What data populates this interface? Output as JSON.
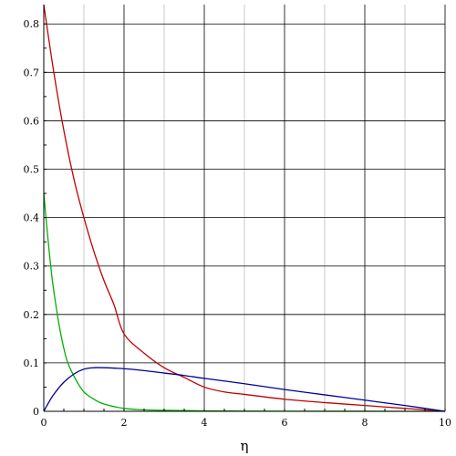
{
  "chart_data": {
    "type": "line",
    "title": "",
    "xlabel": "η",
    "ylabel": "",
    "xlim": [
      0,
      10
    ],
    "ylim": [
      0,
      0.84
    ],
    "grid": true,
    "x_major_ticks": [
      "0",
      "2",
      "4",
      "6",
      "8",
      "10"
    ],
    "y_major_ticks": [
      "0",
      "0.1",
      "0.2",
      "0.3",
      "0.4",
      "0.5",
      "0.6",
      "0.7",
      "0.8"
    ],
    "series": [
      {
        "color": "#c00000",
        "x": [
          0,
          0.25,
          0.5,
          0.75,
          1,
          1.25,
          1.5,
          1.75,
          2,
          2.5,
          3,
          3.5,
          4,
          4.5,
          5,
          6,
          7,
          8,
          9,
          10
        ],
        "y": [
          0.84,
          0.7,
          0.58,
          0.48,
          0.4,
          0.33,
          0.27,
          0.22,
          0.16,
          0.12,
          0.09,
          0.07,
          0.05,
          0.04,
          0.035,
          0.025,
          0.018,
          0.012,
          0.006,
          0
        ]
      },
      {
        "color": "#00b000",
        "x": [
          0,
          0.1,
          0.2,
          0.3,
          0.4,
          0.5,
          0.6,
          0.8,
          1,
          1.25,
          1.5,
          2,
          2.5,
          3,
          4,
          5,
          6,
          8,
          10
        ],
        "y": [
          0.45,
          0.36,
          0.28,
          0.22,
          0.17,
          0.13,
          0.1,
          0.065,
          0.04,
          0.025,
          0.015,
          0.006,
          0.003,
          0.002,
          0.001,
          0.0005,
          0.0003,
          0.0001,
          0
        ]
      },
      {
        "color": "#000099",
        "x": [
          0,
          0.1,
          0.25,
          0.5,
          0.75,
          1,
          1.25,
          1.5,
          2,
          2.5,
          3,
          3.5,
          4,
          5,
          6,
          7,
          8,
          9,
          10
        ],
        "y": [
          0,
          0.015,
          0.035,
          0.06,
          0.077,
          0.087,
          0.09,
          0.09,
          0.088,
          0.084,
          0.079,
          0.074,
          0.068,
          0.057,
          0.045,
          0.034,
          0.023,
          0.012,
          0
        ]
      }
    ]
  }
}
